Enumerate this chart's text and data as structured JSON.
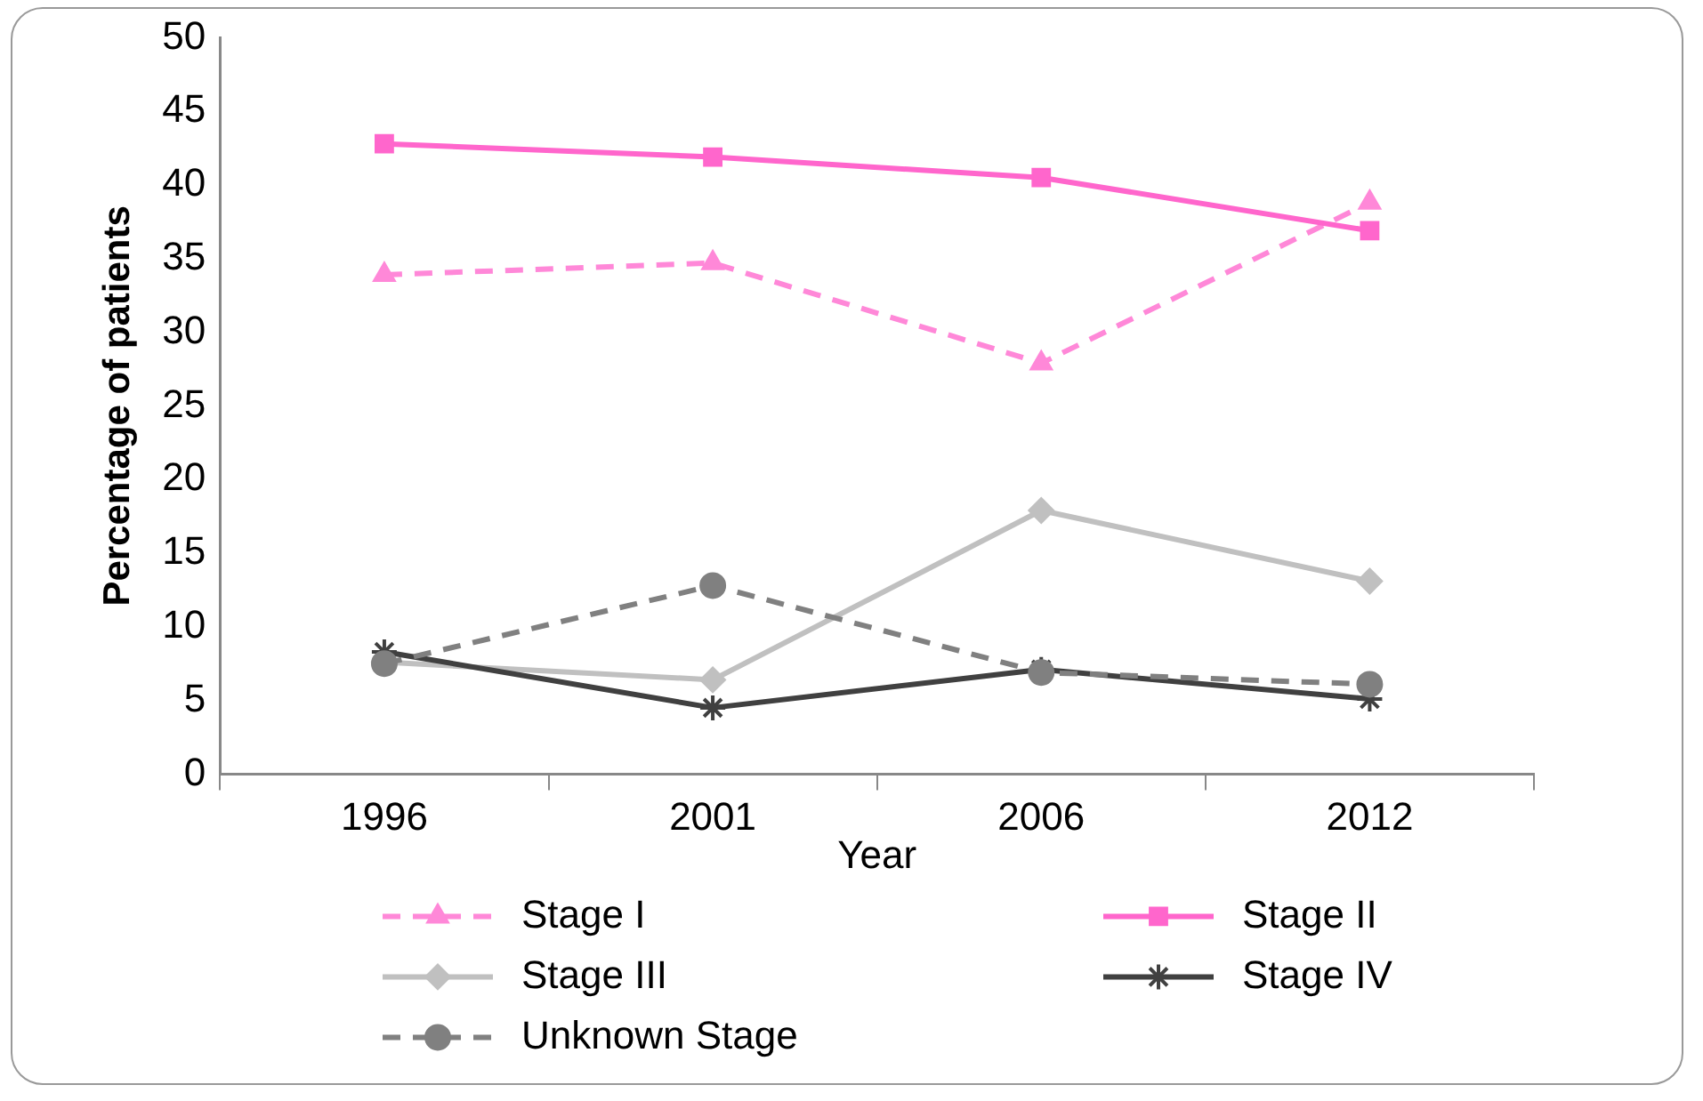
{
  "chart_data": {
    "type": "line",
    "xlabel": "Year",
    "ylabel": "Percentage of patients",
    "categories": [
      "1996",
      "2001",
      "2006",
      "2012"
    ],
    "series": [
      {
        "name": "Stage I",
        "color": "#ff88d8",
        "values": [
          33.9,
          34.7,
          27.9,
          38.8
        ],
        "marker": "triangle",
        "line_style": "dashed"
      },
      {
        "name": "Stage II",
        "color": "#ff66cc",
        "values": [
          42.8,
          41.9,
          40.5,
          36.9
        ],
        "marker": "square",
        "line_style": "solid"
      },
      {
        "name": "Stage III",
        "color": "#c0c0c0",
        "values": [
          7.6,
          6.4,
          17.9,
          13.1
        ],
        "marker": "diamond",
        "line_style": "solid"
      },
      {
        "name": "Stage IV",
        "color": "#404040",
        "values": [
          8.3,
          4.5,
          7.1,
          5.1
        ],
        "marker": "cross",
        "line_style": "solid"
      },
      {
        "name": "Unknown Stage",
        "color": "#808080",
        "values": [
          7.5,
          12.8,
          6.9,
          6.1
        ],
        "marker": "circle",
        "line_style": "dashed"
      }
    ],
    "ylim": [
      0,
      50
    ],
    "yticks": [
      0,
      5,
      10,
      15,
      20,
      25,
      30,
      35,
      40,
      45,
      50
    ],
    "grid": false,
    "legend": "bottom"
  }
}
